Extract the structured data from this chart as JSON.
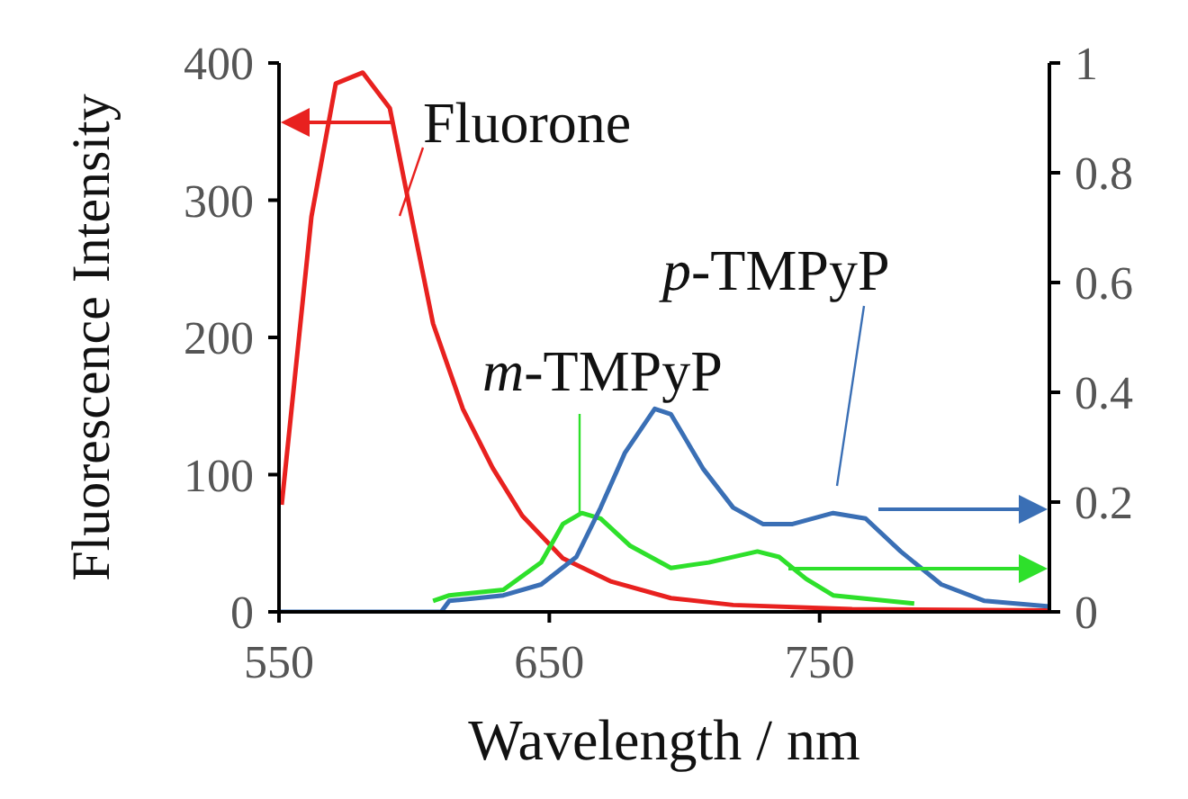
{
  "chart_data": {
    "type": "line",
    "xlabel": "Wavelength / nm",
    "ylabel": "Fluorescence Intensity",
    "xlim": [
      550,
      835
    ],
    "xticks": [
      550,
      650,
      750
    ],
    "ylim": [
      0,
      400
    ],
    "yticks": [
      0,
      100,
      200,
      300,
      400
    ],
    "y2lim": [
      0,
      1
    ],
    "y2ticks": [
      0,
      0.2,
      0.4,
      0.6,
      0.8,
      1
    ],
    "marker": "none",
    "line_style": "solid",
    "series": [
      {
        "name": "Fluorone",
        "color": "#e8211f",
        "x": [
          551,
          562,
          571,
          581,
          591,
          599,
          607,
          618,
          629,
          640,
          655,
          673,
          695,
          718,
          762,
          835
        ],
        "values": [
          78,
          288,
          385,
          393,
          367,
          288,
          210,
          148,
          105,
          70,
          39,
          22,
          10,
          5,
          2,
          1
        ]
      },
      {
        "name": "m-TMPyP",
        "color": "#2ee02b",
        "axis": "y2",
        "x": [
          607,
          613,
          633,
          647,
          655,
          662,
          669,
          680,
          695,
          709,
          727,
          735,
          745,
          755,
          785
        ],
        "values": [
          0.02,
          0.03,
          0.04,
          0.09,
          0.16,
          0.18,
          0.17,
          0.12,
          0.08,
          0.09,
          0.11,
          0.1,
          0.06,
          0.03,
          0.015
        ]
      },
      {
        "name": "p-TMPyP",
        "color": "#3a6fb5",
        "axis": "y2",
        "x": [
          550,
          610,
          613,
          633,
          647,
          660,
          669,
          678,
          689,
          695,
          707,
          718,
          729,
          740,
          755,
          767,
          780,
          795,
          811,
          835
        ],
        "values": [
          0,
          0,
          0.02,
          0.03,
          0.05,
          0.1,
          0.19,
          0.29,
          0.37,
          0.36,
          0.26,
          0.19,
          0.16,
          0.16,
          0.18,
          0.17,
          0.11,
          0.05,
          0.02,
          0.01
        ]
      }
    ]
  }
}
